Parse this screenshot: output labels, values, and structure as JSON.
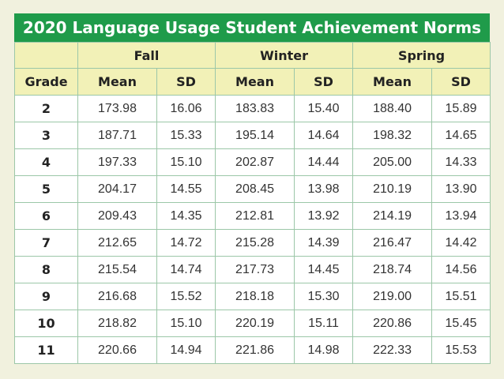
{
  "title": "2020 Language Usage Student Achievement Norms",
  "headers": {
    "seasons": [
      "Fall",
      "Winter",
      "Spring"
    ],
    "grade": "Grade",
    "mean": "Mean",
    "sd": "SD"
  },
  "rows": [
    {
      "grade": "2",
      "fall_mean": "173.98",
      "fall_sd": "16.06",
      "winter_mean": "183.83",
      "winter_sd": "15.40",
      "spring_mean": "188.40",
      "spring_sd": "15.89"
    },
    {
      "grade": "3",
      "fall_mean": "187.71",
      "fall_sd": "15.33",
      "winter_mean": "195.14",
      "winter_sd": "14.64",
      "spring_mean": "198.32",
      "spring_sd": "14.65"
    },
    {
      "grade": "4",
      "fall_mean": "197.33",
      "fall_sd": "15.10",
      "winter_mean": "202.87",
      "winter_sd": "14.44",
      "spring_mean": "205.00",
      "spring_sd": "14.33"
    },
    {
      "grade": "5",
      "fall_mean": "204.17",
      "fall_sd": "14.55",
      "winter_mean": "208.45",
      "winter_sd": "13.98",
      "spring_mean": "210.19",
      "spring_sd": "13.90"
    },
    {
      "grade": "6",
      "fall_mean": "209.43",
      "fall_sd": "14.35",
      "winter_mean": "212.81",
      "winter_sd": "13.92",
      "spring_mean": "214.19",
      "spring_sd": "13.94"
    },
    {
      "grade": "7",
      "fall_mean": "212.65",
      "fall_sd": "14.72",
      "winter_mean": "215.28",
      "winter_sd": "14.39",
      "spring_mean": "216.47",
      "spring_sd": "14.42"
    },
    {
      "grade": "8",
      "fall_mean": "215.54",
      "fall_sd": "14.74",
      "winter_mean": "217.73",
      "winter_sd": "14.45",
      "spring_mean": "218.74",
      "spring_sd": "14.56"
    },
    {
      "grade": "9",
      "fall_mean": "216.68",
      "fall_sd": "15.52",
      "winter_mean": "218.18",
      "winter_sd": "15.30",
      "spring_mean": "219.00",
      "spring_sd": "15.51"
    },
    {
      "grade": "10",
      "fall_mean": "218.82",
      "fall_sd": "15.10",
      "winter_mean": "220.19",
      "winter_sd": "15.11",
      "spring_mean": "220.86",
      "spring_sd": "15.45"
    },
    {
      "grade": "11",
      "fall_mean": "220.66",
      "fall_sd": "14.94",
      "winter_mean": "221.86",
      "winter_sd": "14.98",
      "spring_mean": "222.33",
      "spring_sd": "15.53"
    }
  ],
  "colors": {
    "title_bg": "#1f9b4a",
    "header_bg": "#f2f1b7",
    "page_bg": "#f1f1de",
    "border": "#9cc7a8"
  }
}
